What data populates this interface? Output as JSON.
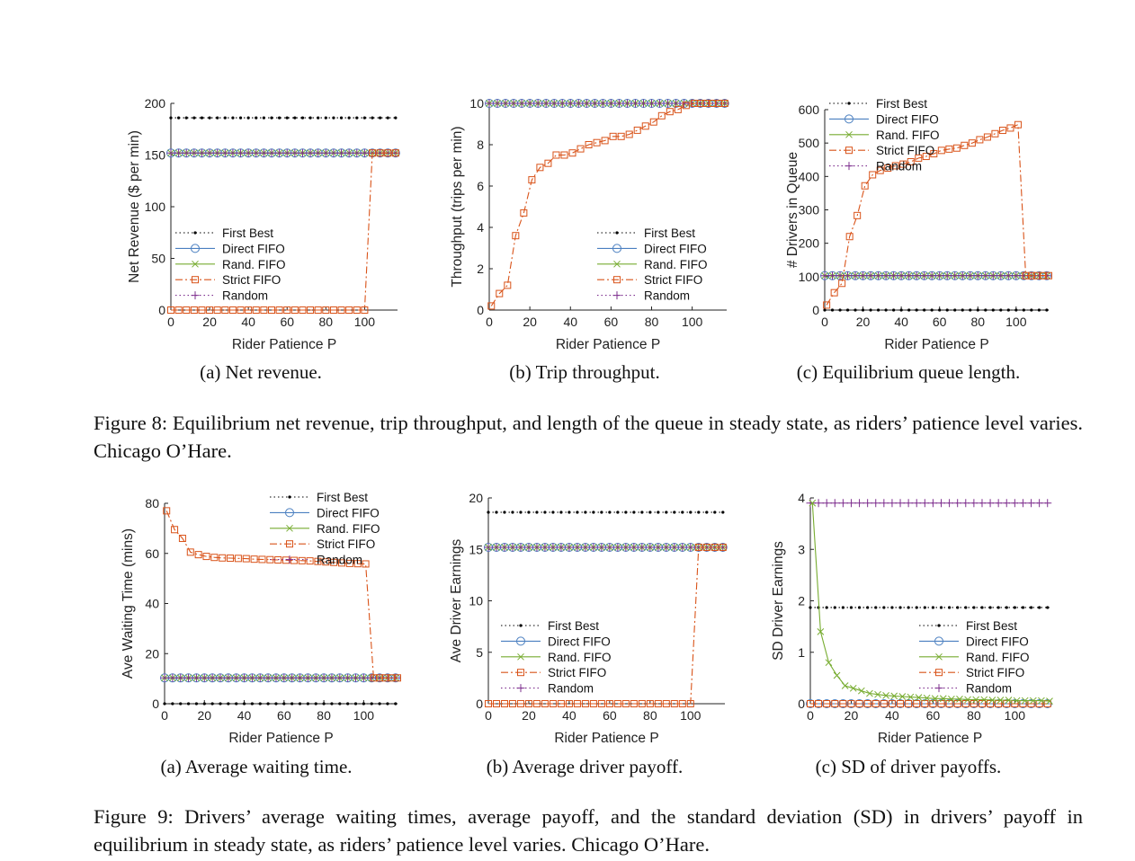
{
  "figures": [
    {
      "caption": "Figure 8: Equilibrium net revenue, trip throughput, and length of the queue in steady state, as riders’ patience level varies. Chicago O’Hare.",
      "subcaptions": [
        "(a) Net revenue.",
        "(b) Trip throughput.",
        "(c) Equilibrium queue length."
      ]
    },
    {
      "caption": "Figure 9: Drivers’ average waiting times, average payoff, and the standard deviation (SD) in drivers’ payoff in equilibrium in steady state, as riders’ patience level varies. Chicago O’Hare.",
      "subcaptions": [
        "(a) Average waiting time.",
        "(b) Average driver payoff.",
        "(c) SD of driver payoffs."
      ]
    }
  ],
  "series_styles": {
    "First Best": {
      "color": "#000000",
      "marker": "dot",
      "dash": "dot"
    },
    "Direct FIFO": {
      "color": "#4a7fc0",
      "marker": "circle",
      "dash": "solid"
    },
    "Rand. FIFO": {
      "color": "#77ac30",
      "marker": "x",
      "dash": "solid"
    },
    "Strict FIFO": {
      "color": "#d95319",
      "marker": "square",
      "dash": "dashdot"
    },
    "Random": {
      "color": "#7e2f8e",
      "marker": "plus",
      "dash": "dot"
    }
  },
  "chart_data": [
    {
      "type": "line",
      "xlabel": "Rider Patience P",
      "ylabel": "Net Revenue ($ per min)",
      "xlim": [
        0,
        117
      ],
      "ylim": [
        0,
        200
      ],
      "xticks": [
        0,
        20,
        40,
        60,
        80,
        100
      ],
      "yticks": [
        0,
        50,
        100,
        150,
        200
      ],
      "legend": "bottom-left",
      "legend_names": [
        "First Best",
        "Direct FIFO",
        "Rand. FIFO",
        "Strict FIFO",
        "Random"
      ],
      "series": [
        {
          "name": "First Best",
          "x": [
            0,
            117
          ],
          "y": [
            186,
            186
          ]
        },
        {
          "name": "Direct FIFO",
          "x": [
            0,
            117
          ],
          "y": [
            152,
            152
          ]
        },
        {
          "name": "Rand. FIFO",
          "x": [
            0,
            117
          ],
          "y": [
            152,
            152
          ]
        },
        {
          "name": "Random",
          "x": [
            0,
            117
          ],
          "y": [
            152,
            152
          ]
        },
        {
          "name": "Strict FIFO",
          "x": [
            0,
            100,
            104,
            117
          ],
          "y": [
            0,
            0,
            152,
            152
          ]
        }
      ]
    },
    {
      "type": "line",
      "xlabel": "Rider Patience P",
      "ylabel": "Throughput (trips per min)",
      "xlim": [
        0,
        117
      ],
      "ylim": [
        0,
        10
      ],
      "xticks": [
        0,
        20,
        40,
        60,
        80,
        100
      ],
      "yticks": [
        0,
        2,
        4,
        6,
        8,
        10
      ],
      "legend": "bottom-right",
      "legend_names": [
        "First Best",
        "Direct FIFO",
        "Rand. FIFO",
        "Strict FIFO",
        "Random"
      ],
      "series": [
        {
          "name": "First Best",
          "x": [
            0,
            117
          ],
          "y": [
            10,
            10
          ]
        },
        {
          "name": "Direct FIFO",
          "x": [
            0,
            117
          ],
          "y": [
            10,
            10
          ]
        },
        {
          "name": "Rand. FIFO",
          "x": [
            0,
            117
          ],
          "y": [
            10,
            10
          ]
        },
        {
          "name": "Random",
          "x": [
            0,
            117
          ],
          "y": [
            10,
            10
          ]
        },
        {
          "name": "Strict FIFO",
          "x": [
            1,
            5,
            9,
            13,
            17,
            21,
            25,
            29,
            33,
            37,
            41,
            45,
            49,
            53,
            57,
            61,
            65,
            69,
            73,
            77,
            81,
            85,
            89,
            93,
            97,
            101,
            104,
            107,
            110,
            113,
            116
          ],
          "y": [
            0.2,
            0.8,
            1.2,
            3.6,
            4.7,
            6.3,
            6.9,
            7.1,
            7.5,
            7.5,
            7.6,
            7.8,
            8.0,
            8.1,
            8.2,
            8.4,
            8.4,
            8.5,
            8.7,
            8.9,
            9.1,
            9.4,
            9.6,
            9.7,
            9.9,
            10.0,
            10.0,
            10.0,
            10.0,
            10.0,
            10.0
          ]
        }
      ]
    },
    {
      "type": "line",
      "xlabel": "Rider Patience P",
      "ylabel": "# Drivers in Queue",
      "xlim": [
        0,
        117
      ],
      "ylim": [
        0,
        600
      ],
      "xticks": [
        0,
        20,
        40,
        60,
        80,
        100
      ],
      "yticks": [
        0,
        100,
        200,
        300,
        400,
        500,
        600
      ],
      "legend": "top-left",
      "legend_names": [
        "First Best",
        "Direct FIFO",
        "Rand. FIFO",
        "Strict FIFO",
        "Random"
      ],
      "series": [
        {
          "name": "First Best",
          "x": [
            0,
            117
          ],
          "y": [
            0,
            0
          ]
        },
        {
          "name": "Direct FIFO",
          "x": [
            0,
            117
          ],
          "y": [
            103,
            103
          ]
        },
        {
          "name": "Rand. FIFO",
          "x": [
            0,
            117
          ],
          "y": [
            103,
            103
          ]
        },
        {
          "name": "Random",
          "x": [
            0,
            117
          ],
          "y": [
            103,
            103
          ]
        },
        {
          "name": "Strict FIFO",
          "x": [
            1,
            5,
            9,
            13,
            17,
            21,
            25,
            29,
            33,
            37,
            41,
            45,
            49,
            53,
            57,
            61,
            65,
            69,
            73,
            77,
            81,
            85,
            89,
            93,
            97,
            101,
            105,
            108,
            111,
            114,
            117
          ],
          "y": [
            15,
            52,
            80,
            220,
            283,
            372,
            405,
            418,
            425,
            432,
            437,
            444,
            455,
            460,
            468,
            478,
            482,
            485,
            493,
            500,
            510,
            518,
            528,
            538,
            545,
            555,
            103,
            103,
            103,
            103,
            103
          ]
        }
      ]
    },
    {
      "type": "line",
      "xlabel": "Rider Patience P",
      "ylabel": "Ave Waiting Time (mins)",
      "xlim": [
        0,
        117
      ],
      "ylim": [
        0,
        80
      ],
      "xticks": [
        0,
        20,
        40,
        60,
        80,
        100
      ],
      "yticks": [
        0,
        20,
        40,
        60,
        80
      ],
      "legend": "top-right",
      "legend_names": [
        "First Best",
        "Direct FIFO",
        "Rand. FIFO",
        "Strict FIFO",
        "Random"
      ],
      "series": [
        {
          "name": "First Best",
          "x": [
            0,
            117
          ],
          "y": [
            0,
            0
          ]
        },
        {
          "name": "Direct FIFO",
          "x": [
            0,
            117
          ],
          "y": [
            10.3,
            10.3
          ]
        },
        {
          "name": "Rand. FIFO",
          "x": [
            0,
            117
          ],
          "y": [
            10.3,
            10.3
          ]
        },
        {
          "name": "Random",
          "x": [
            0,
            117
          ],
          "y": [
            10.3,
            10.3
          ]
        },
        {
          "name": "Strict FIFO",
          "x": [
            1,
            5,
            9,
            13,
            17,
            21,
            25,
            29,
            33,
            37,
            41,
            45,
            49,
            53,
            57,
            61,
            65,
            69,
            73,
            77,
            81,
            85,
            89,
            93,
            97,
            101,
            105,
            108,
            111,
            114,
            117
          ],
          "y": [
            77,
            69.5,
            66,
            60.5,
            59.5,
            58.8,
            58.4,
            58.2,
            58.1,
            58.0,
            57.9,
            57.7,
            57.6,
            57.5,
            57.4,
            57.3,
            57.2,
            57.1,
            57.0,
            56.8,
            56.6,
            56.4,
            56.2,
            56.0,
            55.9,
            55.8,
            10.3,
            10.3,
            10.3,
            10.3,
            10.3
          ]
        }
      ]
    },
    {
      "type": "line",
      "xlabel": "Rider Patience P",
      "ylabel": "Ave Driver Earnings",
      "xlim": [
        0,
        117
      ],
      "ylim": [
        0,
        20
      ],
      "xticks": [
        0,
        20,
        40,
        60,
        80,
        100
      ],
      "yticks": [
        0,
        5,
        10,
        15,
        20
      ],
      "legend": "bottom-left",
      "legend_names": [
        "First Best",
        "Direct FIFO",
        "Rand. FIFO",
        "Strict FIFO",
        "Random"
      ],
      "series": [
        {
          "name": "First Best",
          "x": [
            0,
            117
          ],
          "y": [
            18.6,
            18.6
          ]
        },
        {
          "name": "Direct FIFO",
          "x": [
            0,
            117
          ],
          "y": [
            15.2,
            15.2
          ]
        },
        {
          "name": "Rand. FIFO",
          "x": [
            0,
            117
          ],
          "y": [
            15.2,
            15.2
          ]
        },
        {
          "name": "Random",
          "x": [
            0,
            117
          ],
          "y": [
            15.2,
            15.2
          ]
        },
        {
          "name": "Strict FIFO",
          "x": [
            0,
            100,
            104,
            117
          ],
          "y": [
            0,
            0,
            15.2,
            15.2
          ]
        }
      ]
    },
    {
      "type": "line",
      "xlabel": "Rider Patience P",
      "ylabel": "SD Driver Earnings",
      "xlim": [
        0,
        117
      ],
      "ylim": [
        0,
        4
      ],
      "xticks": [
        0,
        20,
        40,
        60,
        80,
        100
      ],
      "yticks": [
        0,
        1,
        2,
        3,
        4
      ],
      "legend": "bottom-right",
      "legend_names": [
        "First Best",
        "Direct FIFO",
        "Rand. FIFO",
        "Strict FIFO",
        "Random"
      ],
      "series": [
        {
          "name": "First Best",
          "x": [
            0,
            117
          ],
          "y": [
            1.87,
            1.87
          ]
        },
        {
          "name": "Random",
          "x": [
            0,
            117
          ],
          "y": [
            3.9,
            3.9
          ]
        },
        {
          "name": "Direct FIFO",
          "x": [
            0,
            117
          ],
          "y": [
            0.0,
            0.0
          ]
        },
        {
          "name": "Strict FIFO",
          "x": [
            0,
            117
          ],
          "y": [
            0.0,
            0.0
          ]
        },
        {
          "name": "Rand. FIFO",
          "x": [
            1,
            5,
            9,
            13,
            17,
            21,
            25,
            29,
            33,
            37,
            41,
            45,
            49,
            53,
            57,
            61,
            65,
            69,
            73,
            77,
            81,
            85,
            89,
            93,
            97,
            101,
            105,
            109,
            113,
            117
          ],
          "y": [
            3.9,
            1.4,
            0.8,
            0.55,
            0.35,
            0.3,
            0.25,
            0.2,
            0.18,
            0.16,
            0.15,
            0.14,
            0.13,
            0.12,
            0.11,
            0.1,
            0.1,
            0.09,
            0.09,
            0.08,
            0.08,
            0.08,
            0.07,
            0.07,
            0.07,
            0.06,
            0.06,
            0.06,
            0.06,
            0.05
          ]
        }
      ]
    }
  ]
}
